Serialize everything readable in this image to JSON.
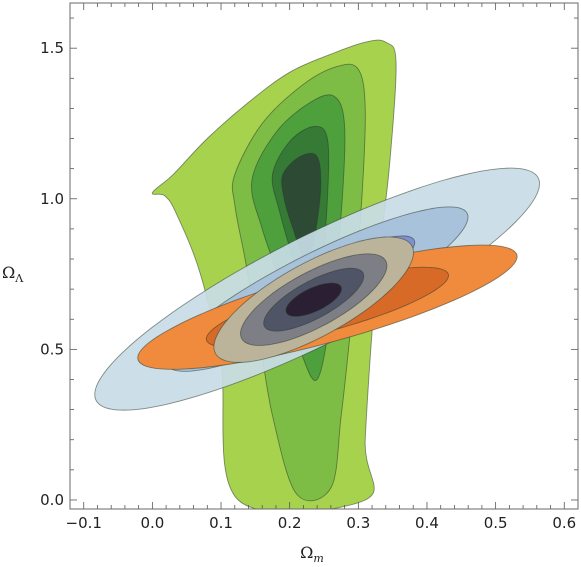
{
  "chart_data": {
    "type": "contour",
    "xlabel": {
      "symbol": "Ω",
      "subscript": "m"
    },
    "ylabel": {
      "symbol": "Ω",
      "subscript": "Λ"
    },
    "xlim": [
      -0.12,
      0.62
    ],
    "ylim": [
      -0.03,
      1.65
    ],
    "xticks": [
      -0.1,
      0.0,
      0.1,
      0.2,
      0.3,
      0.4,
      0.5,
      0.6
    ],
    "xtick_labels": [
      "−0.1",
      "0.0",
      "0.1",
      "0.2",
      "0.3",
      "0.4",
      "0.5",
      "0.6"
    ],
    "yticks": [
      0.0,
      0.5,
      1.0,
      1.5
    ],
    "ytick_labels": [
      "0.0",
      "0.5",
      "1.0",
      "1.5"
    ],
    "frame": true,
    "grid": false,
    "legend": "none",
    "series": [
      {
        "style": "confidence-contours",
        "levels": [
          {
            "fill": "#a7d24e",
            "points": [
              [
                0.0,
                1.02
              ],
              [
                0.03,
                1.08
              ],
              [
                0.08,
                1.2
              ],
              [
                0.14,
                1.32
              ],
              [
                0.2,
                1.42
              ],
              [
                0.26,
                1.48
              ],
              [
                0.31,
                1.52
              ],
              [
                0.34,
                1.52
              ],
              [
                0.355,
                1.45
              ],
              [
                0.345,
                1.1
              ],
              [
                0.325,
                0.7
              ],
              [
                0.31,
                0.2
              ],
              [
                0.31,
                0.0
              ],
              [
                0.125,
                0.0
              ],
              [
                0.1,
                0.45
              ],
              [
                0.07,
                0.75
              ],
              [
                0.035,
                0.95
              ],
              [
                0.018,
                1.01
              ]
            ]
          },
          {
            "fill": "#7dbd45",
            "points": [
              [
                0.12,
                1.08
              ],
              [
                0.16,
                1.25
              ],
              [
                0.22,
                1.38
              ],
              [
                0.27,
                1.44
              ],
              [
                0.3,
                1.43
              ],
              [
                0.31,
                1.3
              ],
              [
                0.305,
                1.0
              ],
              [
                0.29,
                0.6
              ],
              [
                0.275,
                0.28
              ],
              [
                0.26,
                0.04
              ],
              [
                0.21,
                0.02
              ],
              [
                0.175,
                0.28
              ],
              [
                0.155,
                0.55
              ],
              [
                0.135,
                0.8
              ],
              [
                0.12,
                0.98
              ]
            ]
          },
          {
            "fill": "#4ea03d",
            "points": [
              [
                0.145,
                1.06
              ],
              [
                0.18,
                1.22
              ],
              [
                0.23,
                1.32
              ],
              [
                0.265,
                1.34
              ],
              [
                0.28,
                1.24
              ],
              [
                0.275,
                0.95
              ],
              [
                0.26,
                0.62
              ],
              [
                0.24,
                0.4
              ],
              [
                0.215,
                0.5
              ],
              [
                0.19,
                0.7
              ],
              [
                0.16,
                0.9
              ]
            ]
          },
          {
            "fill": "#357a35",
            "points": [
              [
                0.175,
                1.08
              ],
              [
                0.2,
                1.19
              ],
              [
                0.235,
                1.24
              ],
              [
                0.255,
                1.2
              ],
              [
                0.255,
                1.0
              ],
              [
                0.245,
                0.75
              ],
              [
                0.225,
                0.65
              ],
              [
                0.205,
                0.8
              ],
              [
                0.185,
                0.96
              ]
            ]
          },
          {
            "fill": "#2c4a34",
            "points": [
              [
                0.19,
                1.08
              ],
              [
                0.215,
                1.14
              ],
              [
                0.24,
                1.14
              ],
              [
                0.245,
                1.03
              ],
              [
                0.235,
                0.86
              ],
              [
                0.222,
                0.8
              ],
              [
                0.205,
                0.9
              ],
              [
                0.192,
                1.0
              ]
            ]
          }
        ]
      },
      {
        "style": "confidence-ellipses",
        "center": [
          0.24,
          0.7
        ],
        "angle_deg": 52,
        "levels": [
          {
            "fill": "#c8dce6",
            "a": 0.5,
            "b": 0.128
          },
          {
            "fill": "#a8c2dc",
            "a": 0.34,
            "b": 0.085
          },
          {
            "fill": "#7f8fd2",
            "a": 0.22,
            "b": 0.055
          }
        ]
      },
      {
        "style": "confidence-ellipses",
        "center": [
          0.255,
          0.64
        ],
        "angle_deg": 35,
        "levels": [
          {
            "fill": "#f08a3c",
            "a": 0.33,
            "b": 0.1
          },
          {
            "fill": "#d86a28",
            "a": 0.21,
            "b": 0.068
          }
        ]
      },
      {
        "style": "confidence-ellipses",
        "center": [
          0.235,
          0.665
        ],
        "angle_deg": 58,
        "levels": [
          {
            "fill": "#bcb49a",
            "a": 0.24,
            "b": 0.083
          },
          {
            "fill": "#7d7e86",
            "a": 0.175,
            "b": 0.062
          },
          {
            "fill": "#4f5566",
            "a": 0.12,
            "b": 0.042
          },
          {
            "fill": "#2a1f33",
            "a": 0.063,
            "b": 0.027
          }
        ]
      }
    ]
  }
}
